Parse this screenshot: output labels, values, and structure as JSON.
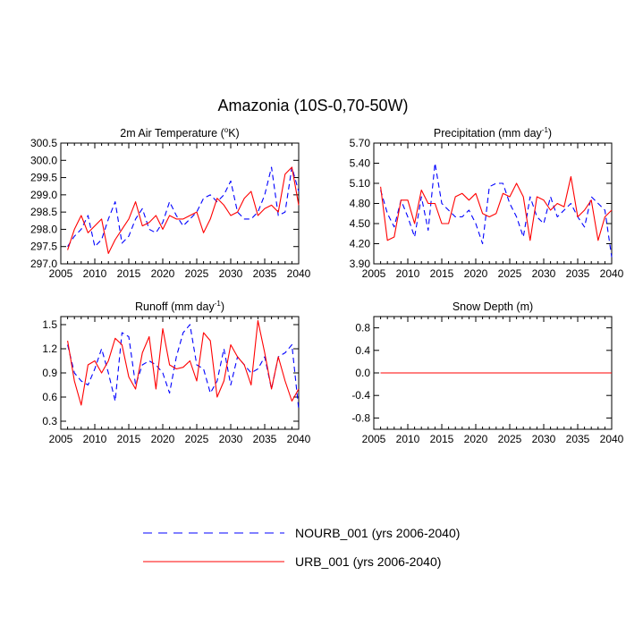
{
  "title": "Amazonia (10S-0,70-50W)",
  "colors": {
    "nourb": "#0000ff",
    "urb": "#ff0000",
    "axis": "#000000"
  },
  "legend": [
    {
      "label": "NOURB_001 (yrs 2006-2040)",
      "style": "dashed",
      "color": "#0000ff"
    },
    {
      "label": "URB_001 (yrs 2006-2040)",
      "style": "solid",
      "color": "#ff0000"
    }
  ],
  "chart_data": [
    {
      "type": "line",
      "title": "2m Air Temperature (°K)",
      "title_main": "2m Air Temperature (",
      "title_sup": "o",
      "title_end": "K)",
      "xlim": [
        2005,
        2040
      ],
      "ylim": [
        297.0,
        300.5
      ],
      "xticks": [
        "2005",
        "2010",
        "2015",
        "2020",
        "2025",
        "2030",
        "2035",
        "2040"
      ],
      "yticks": [
        "297.0",
        "297.5",
        "298.0",
        "298.5",
        "299.0",
        "299.5",
        "300.0",
        "300.5"
      ],
      "x": [
        2006,
        2007,
        2008,
        2009,
        2010,
        2011,
        2012,
        2013,
        2014,
        2015,
        2016,
        2017,
        2018,
        2019,
        2020,
        2021,
        2022,
        2023,
        2024,
        2025,
        2026,
        2027,
        2028,
        2029,
        2030,
        2031,
        2032,
        2033,
        2034,
        2035,
        2036,
        2037,
        2038,
        2039,
        2040
      ],
      "series": [
        {
          "name": "NOURB_001",
          "values": [
            297.5,
            297.8,
            298.0,
            298.4,
            297.5,
            297.7,
            298.3,
            298.8,
            297.6,
            297.8,
            298.3,
            298.6,
            298.0,
            297.9,
            298.2,
            298.8,
            298.4,
            298.1,
            298.3,
            298.5,
            298.9,
            299.0,
            298.8,
            299.0,
            299.4,
            298.5,
            298.3,
            298.3,
            298.5,
            299.0,
            299.8,
            298.4,
            298.5,
            299.8,
            299.1
          ]
        },
        {
          "name": "URB_001",
          "values": [
            297.4,
            298.0,
            298.4,
            297.9,
            298.1,
            298.3,
            297.3,
            297.7,
            298.0,
            298.3,
            298.8,
            298.1,
            298.2,
            298.4,
            298.0,
            298.4,
            298.3,
            298.3,
            298.4,
            298.5,
            297.9,
            298.3,
            298.9,
            298.7,
            298.4,
            298.5,
            298.9,
            299.1,
            298.4,
            298.6,
            298.7,
            298.5,
            299.6,
            299.8,
            298.7
          ]
        }
      ]
    },
    {
      "type": "line",
      "title": "Precipitation (mm day-1)",
      "title_main": "Precipitation (mm day",
      "title_sup": "-1",
      "title_end": ")",
      "xlim": [
        2005,
        2040
      ],
      "ylim": [
        3.9,
        5.7
      ],
      "xticks": [
        "2005",
        "2010",
        "2015",
        "2020",
        "2025",
        "2030",
        "2035",
        "2040"
      ],
      "yticks": [
        "3.90",
        "4.20",
        "4.50",
        "4.80",
        "5.10",
        "5.40",
        "5.70"
      ],
      "x": [
        2006,
        2007,
        2008,
        2009,
        2010,
        2011,
        2012,
        2013,
        2014,
        2015,
        2016,
        2017,
        2018,
        2019,
        2020,
        2021,
        2022,
        2023,
        2024,
        2025,
        2026,
        2027,
        2028,
        2029,
        2030,
        2031,
        2032,
        2033,
        2034,
        2035,
        2036,
        2037,
        2038,
        2039,
        2040
      ],
      "series": [
        {
          "name": "NOURB_001",
          "values": [
            5.0,
            4.65,
            4.45,
            4.85,
            4.6,
            4.3,
            4.9,
            4.4,
            5.4,
            4.8,
            4.7,
            4.6,
            4.6,
            4.7,
            4.5,
            4.2,
            5.05,
            5.1,
            5.1,
            4.8,
            4.6,
            4.3,
            4.9,
            4.6,
            4.5,
            4.9,
            4.6,
            4.7,
            4.8,
            4.6,
            4.45,
            4.9,
            4.8,
            4.7,
            4.0
          ]
        },
        {
          "name": "URB_001",
          "values": [
            5.05,
            4.25,
            4.3,
            4.85,
            4.85,
            4.5,
            5.0,
            4.8,
            4.8,
            4.5,
            4.5,
            4.9,
            4.95,
            4.85,
            4.95,
            4.65,
            4.6,
            4.65,
            4.95,
            4.9,
            5.1,
            4.9,
            4.25,
            4.9,
            4.85,
            4.7,
            4.8,
            4.75,
            5.2,
            4.6,
            4.7,
            4.85,
            4.25,
            4.6,
            4.7
          ]
        }
      ]
    },
    {
      "type": "line",
      "title": "Runoff (mm day-1)",
      "title_main": "Runoff (mm day",
      "title_sup": "-1",
      "title_end": ")",
      "xlim": [
        2005,
        2040
      ],
      "ylim": [
        0.2,
        1.6
      ],
      "xticks": [
        "2005",
        "2010",
        "2015",
        "2020",
        "2025",
        "2030",
        "2035",
        "2040"
      ],
      "yticks": [
        "0.3",
        "0.6",
        "0.9",
        "1.2",
        "1.5"
      ],
      "ytick_values": [
        0.3,
        0.6,
        0.9,
        1.2,
        1.5
      ],
      "x": [
        2006,
        2007,
        2008,
        2009,
        2010,
        2011,
        2012,
        2013,
        2014,
        2015,
        2016,
        2017,
        2018,
        2019,
        2020,
        2021,
        2022,
        2023,
        2024,
        2025,
        2026,
        2027,
        2028,
        2029,
        2030,
        2031,
        2032,
        2033,
        2034,
        2035,
        2036,
        2037,
        2038,
        2039,
        2040
      ],
      "series": [
        {
          "name": "NOURB_001",
          "values": [
            1.25,
            0.9,
            0.8,
            0.75,
            0.95,
            1.2,
            0.9,
            0.55,
            1.4,
            1.35,
            0.75,
            1.0,
            1.05,
            1.0,
            0.9,
            0.65,
            1.1,
            1.4,
            1.5,
            1.0,
            0.95,
            0.65,
            0.8,
            1.2,
            0.75,
            1.1,
            1.0,
            0.9,
            0.95,
            1.1,
            0.7,
            1.1,
            1.15,
            1.25,
            0.45
          ]
        },
        {
          "name": "URB_001",
          "values": [
            1.3,
            0.8,
            0.5,
            1.0,
            1.05,
            0.9,
            1.05,
            1.33,
            1.25,
            0.85,
            0.7,
            1.15,
            1.35,
            0.7,
            1.45,
            1.0,
            0.95,
            0.97,
            1.05,
            0.8,
            1.4,
            1.3,
            0.6,
            0.8,
            1.25,
            1.1,
            1.0,
            0.75,
            1.55,
            1.15,
            0.7,
            1.1,
            0.8,
            0.55,
            0.7
          ]
        }
      ]
    },
    {
      "type": "line",
      "title": "Snow Depth (m)",
      "title_main": "Snow Depth (m)",
      "title_sup": "",
      "title_end": "",
      "xlim": [
        2005,
        2040
      ],
      "ylim": [
        -1.0,
        1.0
      ],
      "xticks": [
        "2005",
        "2010",
        "2015",
        "2020",
        "2025",
        "2030",
        "2035",
        "2040"
      ],
      "yticks": [
        "-0.8",
        "-0.4",
        "0.0",
        "0.4",
        "0.8"
      ],
      "ytick_values": [
        -0.8,
        -0.4,
        0.0,
        0.4,
        0.8
      ],
      "x": [
        2006,
        2007,
        2008,
        2009,
        2010,
        2011,
        2012,
        2013,
        2014,
        2015,
        2016,
        2017,
        2018,
        2019,
        2020,
        2021,
        2022,
        2023,
        2024,
        2025,
        2026,
        2027,
        2028,
        2029,
        2030,
        2031,
        2032,
        2033,
        2034,
        2035,
        2036,
        2037,
        2038,
        2039,
        2040
      ],
      "series": [
        {
          "name": "NOURB_001",
          "values": [
            0,
            0,
            0,
            0,
            0,
            0,
            0,
            0,
            0,
            0,
            0,
            0,
            0,
            0,
            0,
            0,
            0,
            0,
            0,
            0,
            0,
            0,
            0,
            0,
            0,
            0,
            0,
            0,
            0,
            0,
            0,
            0,
            0,
            0,
            0
          ]
        },
        {
          "name": "URB_001",
          "values": [
            0,
            0,
            0,
            0,
            0,
            0,
            0,
            0,
            0,
            0,
            0,
            0,
            0,
            0,
            0,
            0,
            0,
            0,
            0,
            0,
            0,
            0,
            0,
            0,
            0,
            0,
            0,
            0,
            0,
            0,
            0,
            0,
            0,
            0,
            0
          ]
        }
      ]
    }
  ]
}
